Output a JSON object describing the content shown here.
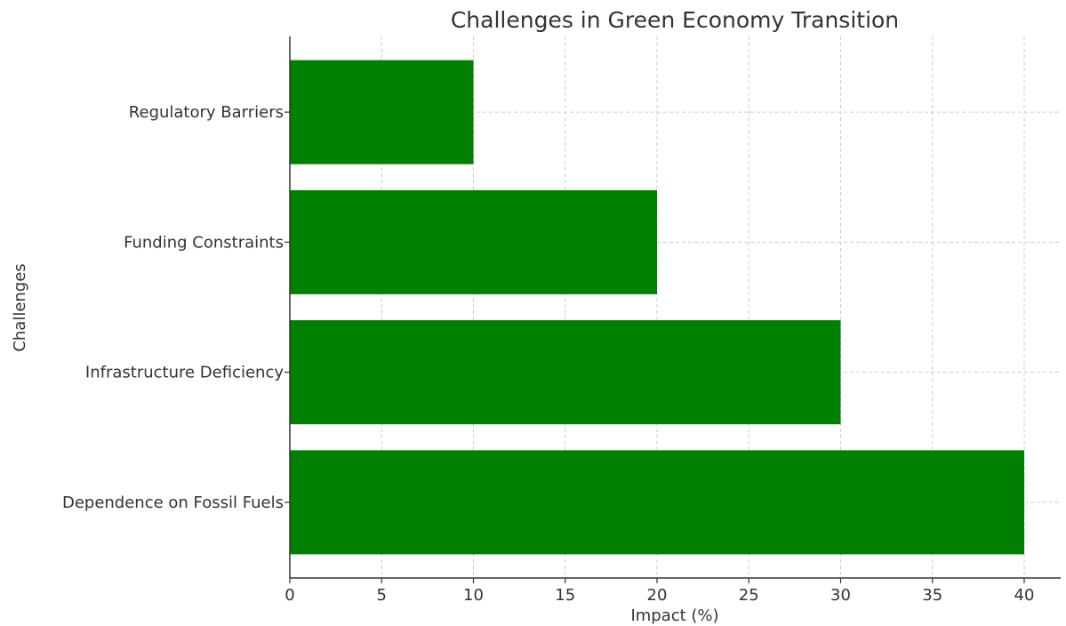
{
  "chart_data": {
    "type": "bar",
    "orientation": "horizontal",
    "title": "Challenges in Green Economy Transition",
    "xlabel": "Impact (%)",
    "ylabel": "Challenges",
    "categories": [
      "Dependence on Fossil Fuels",
      "Infrastructure Deficiency",
      "Funding Constraints",
      "Regulatory Barriers"
    ],
    "values": [
      40,
      30,
      20,
      10
    ],
    "xlim": [
      0,
      42
    ],
    "xticks": [
      0,
      5,
      10,
      15,
      20,
      25,
      30,
      35,
      40
    ],
    "bar_color": "#008000",
    "grid": true,
    "legend": "none"
  }
}
